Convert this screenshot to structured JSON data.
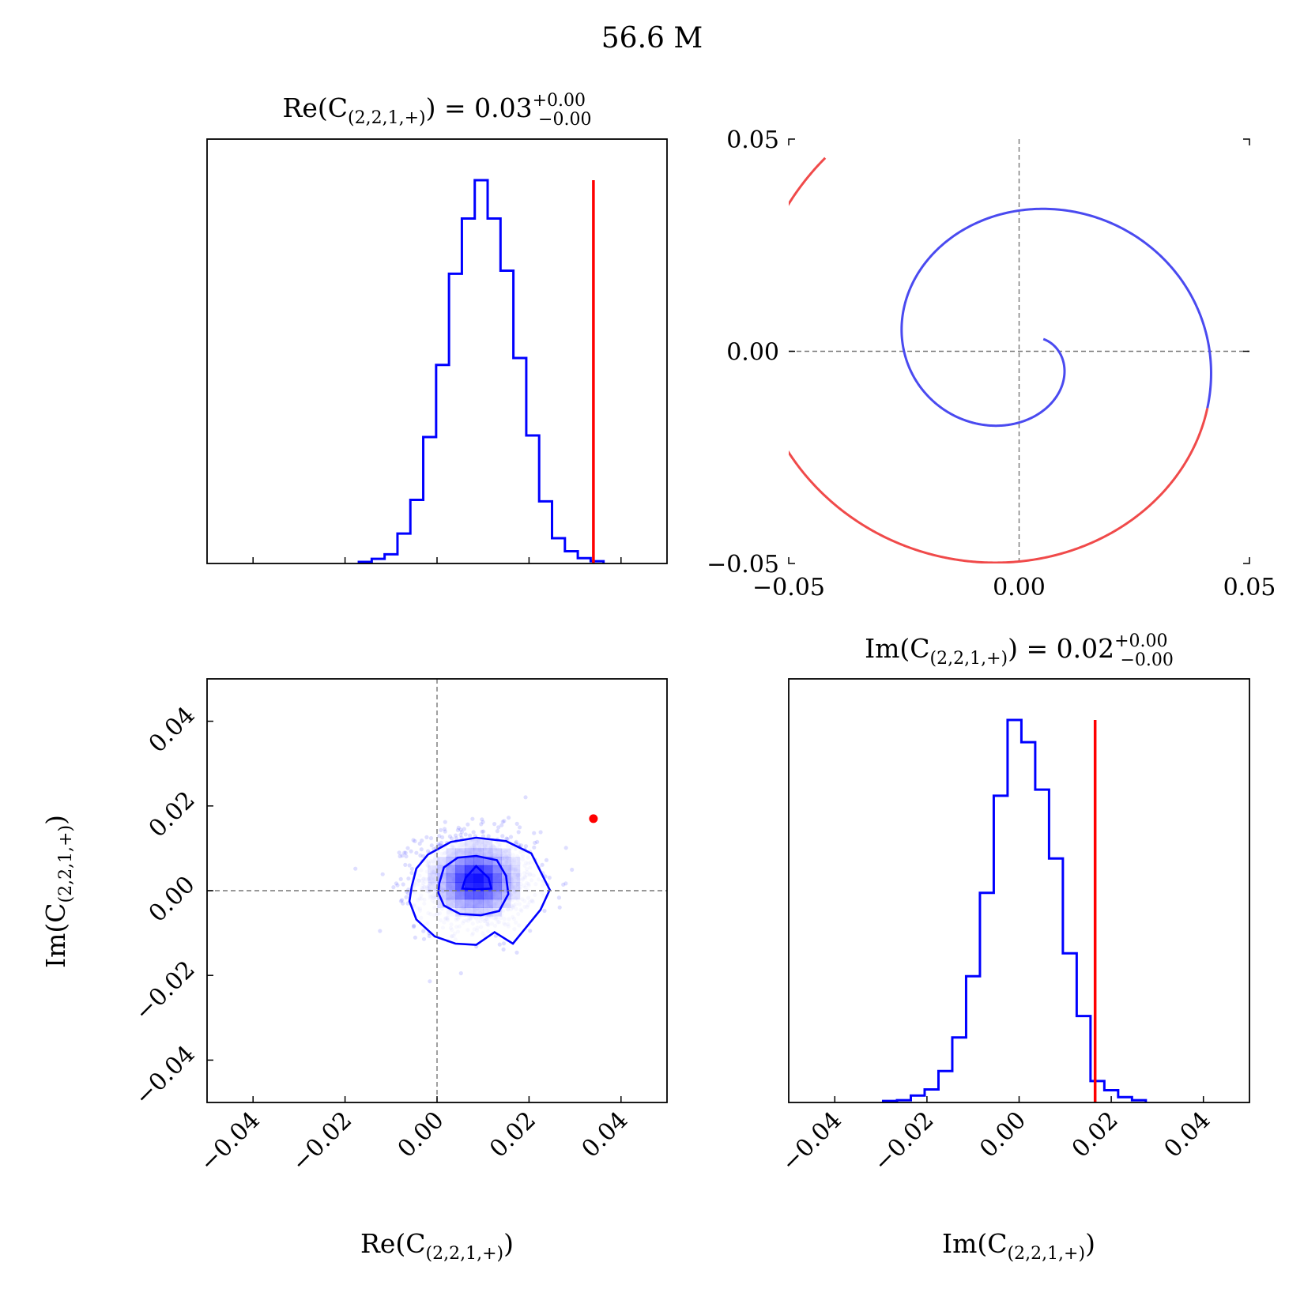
{
  "figure": {
    "title": "56.6 M"
  },
  "chart_data": [
    {
      "type": "histogram",
      "panel": "re_marginal",
      "title": {
        "var": "Re(C",
        "sub": "(2,2,1,+)",
        "close": ")",
        "value": " = 0.03",
        "sup": "+0.00",
        "inf": "−0.00"
      },
      "xlim": [
        -0.05,
        0.05
      ],
      "xticks": [
        -0.04,
        -0.02,
        0.0,
        0.02,
        0.04
      ],
      "bin_edges": [
        -0.017,
        -0.0142,
        -0.0114,
        -0.0086,
        -0.0058,
        -0.003,
        -0.0002,
        0.0026,
        0.0054,
        0.0082,
        0.011,
        0.0138,
        0.0166,
        0.0194,
        0.0222,
        0.025,
        0.0278,
        0.0306,
        0.0334,
        0.0362
      ],
      "counts": [
        0.004,
        0.012,
        0.024,
        0.078,
        0.166,
        0.33,
        0.518,
        0.756,
        0.9,
        1.0,
        0.9,
        0.764,
        0.536,
        0.334,
        0.162,
        0.066,
        0.032,
        0.014,
        0.006
      ],
      "truth": 0.034,
      "truth_color": "#ff0000",
      "hist_color": "#0000ff"
    },
    {
      "type": "line",
      "panel": "complex_plane",
      "xlim": [
        -0.05,
        0.05
      ],
      "ylim": [
        -0.05,
        0.05
      ],
      "xticks": [
        "-0.05",
        "0.00",
        "0.05"
      ],
      "yticks": [
        "-0.05",
        "0.00",
        "0.05"
      ],
      "series": [
        {
          "name": "posterior-spiral",
          "color": "#4a4af0",
          "t_range": [
            0,
            14.2
          ],
          "r0": 0.006,
          "r_growth": 0.037,
          "rotation": 0.5,
          "center": [
            0,
            0
          ]
        },
        {
          "name": "truth-spiral",
          "color": "#f04a4a",
          "t_range": [
            14.2,
            21.5
          ],
          "r0": 0.006,
          "r_growth": 0.037,
          "rotation": 0.5,
          "center": [
            0,
            0
          ]
        }
      ]
    },
    {
      "type": "scatter",
      "panel": "joint",
      "xlim": [
        -0.05,
        0.05
      ],
      "ylim": [
        -0.05,
        0.05
      ],
      "xticks": [
        -0.04,
        -0.02,
        0.0,
        0.02,
        0.04
      ],
      "yticks": [
        -0.04,
        -0.02,
        0.0,
        0.02,
        0.04
      ],
      "xlabel": {
        "var": "Re(C",
        "sub": "(2,2,1,+)",
        "close": ")"
      },
      "ylabel": {
        "var": "Im(C",
        "sub": "(2,2,1,+)",
        "close": ")"
      },
      "center": [
        0.0085,
        0.0025
      ],
      "spread": [
        0.0065,
        0.0057
      ],
      "n_samples": 1400,
      "truth": [
        0.034,
        0.017
      ],
      "contour_levels": [
        {
          "name": "outer",
          "points": [
            [
              -0.0055,
              0.001
            ],
            [
              -0.0045,
              0.0052
            ],
            [
              -0.002,
              0.0085
            ],
            [
              0.003,
              0.0115
            ],
            [
              0.0085,
              0.0125
            ],
            [
              0.015,
              0.0117
            ],
            [
              0.0205,
              0.0088
            ],
            [
              0.0225,
              0.0045
            ],
            [
              0.0245,
              0.0002
            ],
            [
              0.0225,
              -0.0045
            ],
            [
              0.0195,
              -0.0085
            ],
            [
              0.0165,
              -0.0125
            ],
            [
              0.0125,
              -0.0098
            ],
            [
              0.0085,
              -0.0128
            ],
            [
              0.004,
              -0.0125
            ],
            [
              -0.0005,
              -0.0108
            ],
            [
              -0.0045,
              -0.0068
            ],
            [
              -0.006,
              -0.0025
            ]
          ]
        },
        {
          "name": "middle",
          "points": [
            [
              0.0005,
              0.0018
            ],
            [
              0.0015,
              0.0055
            ],
            [
              0.0045,
              0.0078
            ],
            [
              0.0085,
              0.0082
            ],
            [
              0.013,
              0.0072
            ],
            [
              0.015,
              0.0035
            ],
            [
              0.0155,
              -0.0008
            ],
            [
              0.0135,
              -0.0048
            ],
            [
              0.0095,
              -0.0058
            ],
            [
              0.005,
              -0.0055
            ],
            [
              0.0015,
              -0.0035
            ],
            [
              0.0003,
              -0.0005
            ]
          ]
        },
        {
          "name": "inner",
          "points": [
            [
              0.0085,
              0.0058
            ],
            [
              0.0112,
              0.003
            ],
            [
              0.0118,
              0.0005
            ],
            [
              0.0085,
              0.0003
            ],
            [
              0.0055,
              0.0005
            ],
            [
              0.0062,
              0.003
            ]
          ]
        }
      ],
      "color": "#0000ff"
    },
    {
      "type": "histogram",
      "panel": "im_marginal",
      "title": {
        "var": "Im(C",
        "sub": "(2,2,1,+)",
        "close": ")",
        "value": " = 0.02",
        "sup": "+0.00",
        "inf": "−0.00"
      },
      "xlim": [
        -0.05,
        0.05
      ],
      "xticks": [
        -0.04,
        -0.02,
        0.0,
        0.02,
        0.04
      ],
      "xlabel": {
        "var": "Im(C",
        "sub": "(2,2,1,+)",
        "close": ")"
      },
      "bin_edges": [
        -0.0295,
        -0.0265,
        -0.0235,
        -0.0205,
        -0.0175,
        -0.0145,
        -0.0115,
        -0.0085,
        -0.0055,
        -0.0025,
        0.0005,
        0.0035,
        0.0065,
        0.0095,
        0.0125,
        0.0155,
        0.0185,
        0.0215,
        0.0245,
        0.0275
      ],
      "counts": [
        0.004,
        0.006,
        0.018,
        0.034,
        0.082,
        0.17,
        0.33,
        0.548,
        0.802,
        1.0,
        0.942,
        0.818,
        0.638,
        0.39,
        0.226,
        0.056,
        0.032,
        0.014,
        0.006
      ],
      "truth": 0.0165,
      "truth_color": "#ff0000",
      "hist_color": "#0000ff"
    }
  ]
}
